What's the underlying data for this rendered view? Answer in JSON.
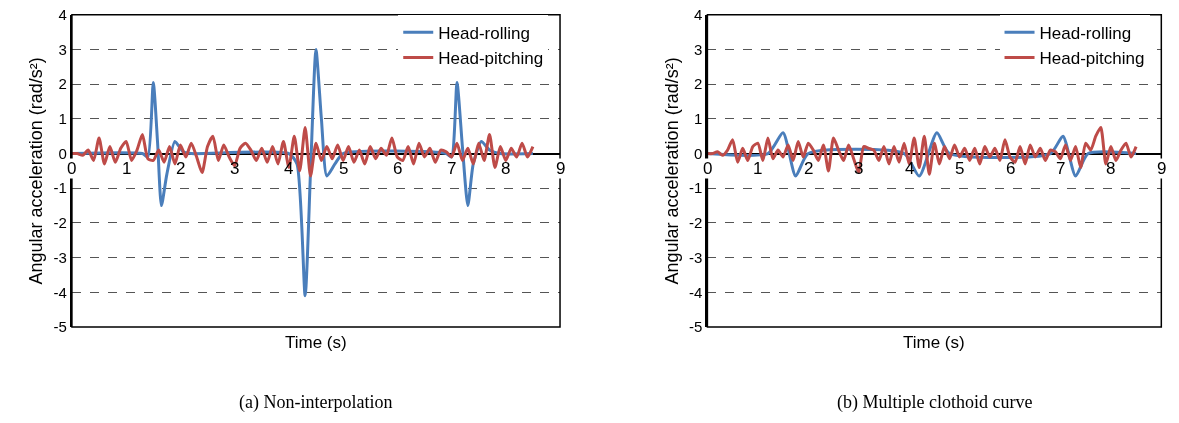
{
  "chart_data": [
    {
      "type": "line",
      "title": "(a) Non-interpolation",
      "xlabel": "Time (s)",
      "ylabel": "Angular acceleration (rad/s²)",
      "xlim": [
        0,
        9
      ],
      "xticks": [
        0,
        1,
        2,
        3,
        4,
        5,
        6,
        7,
        8,
        9
      ],
      "ylim": [
        -5,
        4
      ],
      "yticks": [
        -5,
        -4,
        -3,
        -2,
        -1,
        0,
        1,
        2,
        3,
        4
      ],
      "grid": "y",
      "legend": "top right",
      "marker": "none",
      "line_style": "solid",
      "series": [
        {
          "name": "Head-rolling",
          "color": "#4a7ebb",
          "x": [
            0,
            1.3,
            1.4,
            1.5,
            1.58,
            1.65,
            1.75,
            1.9,
            2.05,
            2.2,
            4.0,
            4.15,
            4.3,
            4.4,
            4.5,
            4.6,
            4.7,
            4.85,
            5.0,
            6.9,
            7.0,
            7.1,
            7.2,
            7.3,
            7.4,
            7.55,
            7.7,
            7.9,
            8.5
          ],
          "values": [
            0,
            0,
            -0.1,
            2.05,
            0.3,
            -1.5,
            -0.6,
            0.35,
            0.05,
            0,
            0,
            -0.3,
            -4.1,
            -0.5,
            3.0,
            1.0,
            -0.65,
            -0.3,
            0,
            0,
            -0.1,
            2.05,
            0.2,
            -1.5,
            -0.3,
            0.35,
            0.1,
            0,
            0
          ]
        },
        {
          "name": "Head-pitching",
          "color": "#be4b48",
          "x": [
            0,
            0.1,
            0.2,
            0.3,
            0.4,
            0.5,
            0.6,
            0.7,
            0.8,
            0.9,
            1.0,
            1.1,
            1.2,
            1.3,
            1.4,
            1.5,
            1.6,
            1.7,
            1.8,
            1.9,
            2.0,
            2.1,
            2.2,
            2.3,
            2.4,
            2.5,
            2.6,
            2.7,
            2.8,
            2.9,
            3.0,
            3.1,
            3.2,
            3.3,
            3.4,
            3.5,
            3.6,
            3.7,
            3.8,
            3.9,
            4.0,
            4.1,
            4.2,
            4.3,
            4.4,
            4.5,
            4.6,
            4.7,
            4.8,
            4.9,
            5.0,
            5.1,
            5.2,
            5.3,
            5.4,
            5.5,
            5.6,
            5.7,
            5.8,
            5.9,
            6.0,
            6.1,
            6.2,
            6.3,
            6.4,
            6.5,
            6.6,
            6.7,
            6.8,
            6.9,
            7.0,
            7.1,
            7.2,
            7.3,
            7.4,
            7.5,
            7.6,
            7.7,
            7.8,
            7.9,
            8.0,
            8.1,
            8.2,
            8.3,
            8.4,
            8.5
          ],
          "values": [
            0,
            0,
            -0.05,
            0.1,
            -0.2,
            0.45,
            -0.3,
            0.2,
            -0.25,
            0.15,
            0.35,
            -0.2,
            0.1,
            0.55,
            -0.15,
            -0.2,
            0.1,
            -0.25,
            0.2,
            -0.3,
            0.25,
            -0.1,
            0.3,
            -0.1,
            -0.55,
            0.2,
            0.5,
            -0.2,
            0.25,
            -0.1,
            -0.35,
            0.15,
            0.3,
            0.1,
            -0.2,
            0.15,
            -0.25,
            0.2,
            -0.3,
            0.35,
            -0.4,
            0.5,
            -0.5,
            0.75,
            -0.65,
            0.3,
            -0.2,
            0.2,
            -0.15,
            0.25,
            -0.2,
            0.2,
            -0.25,
            0.1,
            -0.3,
            0.2,
            -0.15,
            0.15,
            -0.05,
            0.45,
            -0.1,
            -0.2,
            0.2,
            -0.3,
            0.3,
            -0.1,
            0.15,
            -0.25,
            0.1,
            0.05,
            -0.1,
            0.3,
            -0.2,
            0.15,
            -0.3,
            0.3,
            -0.2,
            0.55,
            -0.4,
            0.2,
            -0.2,
            0.15,
            -0.1,
            0.3,
            -0.1,
            0.2
          ]
        }
      ]
    },
    {
      "type": "line",
      "title": "(b) Multiple clothoid curve",
      "xlabel": "Time (s)",
      "ylabel": "Angular acceleration (rad/s²)",
      "xlim": [
        0,
        9
      ],
      "xticks": [
        0,
        1,
        2,
        3,
        4,
        5,
        6,
        7,
        8,
        9
      ],
      "ylim": [
        -5,
        4
      ],
      "yticks": [
        -5,
        -4,
        -3,
        -2,
        -1,
        0,
        1,
        2,
        3,
        4
      ],
      "grid": "y",
      "legend": "top right",
      "marker": "none",
      "line_style": "solid",
      "series": [
        {
          "name": "Head-rolling",
          "color": "#4a7ebb",
          "x": [
            0,
            1.2,
            1.5,
            1.75,
            2.0,
            3.9,
            4.2,
            4.55,
            4.8,
            6.8,
            7.05,
            7.3,
            7.55,
            8.5
          ],
          "values": [
            0,
            0,
            0.6,
            -0.65,
            0,
            0,
            -0.65,
            0.6,
            0,
            0,
            0.5,
            -0.65,
            0,
            0
          ]
        },
        {
          "name": "Head-pitching",
          "color": "#be4b48",
          "x": [
            0,
            0.1,
            0.2,
            0.3,
            0.4,
            0.5,
            0.6,
            0.7,
            0.8,
            0.9,
            1.0,
            1.1,
            1.2,
            1.3,
            1.4,
            1.5,
            1.6,
            1.7,
            1.8,
            1.9,
            2.0,
            2.1,
            2.2,
            2.3,
            2.4,
            2.5,
            2.6,
            2.7,
            2.8,
            2.9,
            3.0,
            3.1,
            3.2,
            3.3,
            3.4,
            3.5,
            3.6,
            3.7,
            3.8,
            3.9,
            4.0,
            4.1,
            4.2,
            4.3,
            4.4,
            4.5,
            4.6,
            4.7,
            4.8,
            4.9,
            5.0,
            5.1,
            5.2,
            5.3,
            5.4,
            5.5,
            5.6,
            5.7,
            5.8,
            5.9,
            6.0,
            6.1,
            6.2,
            6.3,
            6.4,
            6.5,
            6.6,
            6.7,
            6.8,
            6.9,
            7.0,
            7.1,
            7.2,
            7.3,
            7.4,
            7.5,
            7.6,
            7.7,
            7.8,
            7.9,
            8.0,
            8.1,
            8.2,
            8.3,
            8.4,
            8.5
          ],
          "values": [
            0,
            0,
            0.05,
            -0.05,
            0.1,
            0.4,
            -0.25,
            0.15,
            -0.2,
            0.2,
            0.3,
            -0.2,
            0.45,
            -0.15,
            0.1,
            -0.1,
            0.25,
            -0.2,
            0.35,
            -0.1,
            0.3,
            0.1,
            -0.2,
            0.25,
            -0.5,
            0.45,
            0.1,
            -0.2,
            0.25,
            -0.15,
            -0.55,
            0.2,
            0.15,
            0.1,
            -0.2,
            0.2,
            -0.3,
            0.2,
            -0.25,
            0.3,
            -0.3,
            0.45,
            -0.4,
            0.5,
            -0.6,
            0.3,
            -0.3,
            0.2,
            -0.15,
            0.25,
            -0.1,
            0.15,
            -0.2,
            0.15,
            -0.3,
            0.2,
            -0.1,
            0.15,
            -0.2,
            0.4,
            -0.1,
            -0.25,
            0.2,
            -0.3,
            0.25,
            -0.1,
            0.15,
            -0.2,
            0.1,
            0.05,
            -0.15,
            0.25,
            -0.2,
            0.2,
            -0.4,
            0.3,
            0.1,
            0.5,
            0.75,
            -0.3,
            0.2,
            -0.2,
            0.1,
            0.3,
            -0.1,
            0.2
          ]
        }
      ]
    }
  ]
}
